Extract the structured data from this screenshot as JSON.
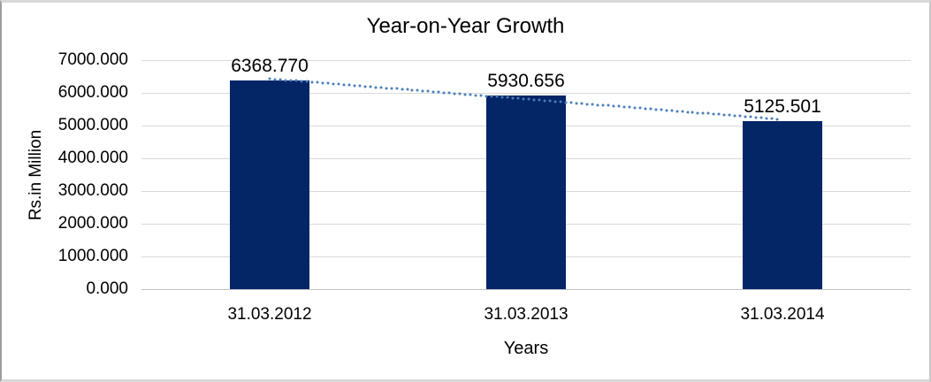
{
  "chart_data": {
    "type": "bar",
    "title": "Year-on-Year Growth",
    "xlabel": "Years",
    "ylabel": "Rs.in Million",
    "categories": [
      "31.03.2012",
      "31.03.2013",
      "31.03.2014"
    ],
    "values": [
      6368.77,
      5930.656,
      5125.501
    ],
    "data_labels": [
      "6368.770",
      "5930.656",
      "5125.501"
    ],
    "y_ticks": [
      "7000.000",
      "6000.000",
      "5000.000",
      "4000.000",
      "3000.000",
      "2000.000",
      "1000.000",
      "0.000"
    ],
    "ylim": [
      0,
      7000
    ],
    "grid": true,
    "legend": "none",
    "colors": {
      "bar": "#042566",
      "trendline": "#4a7ebb",
      "gridline": "#d9d9d9",
      "text": "#000000"
    },
    "trendline": {
      "type": "linear",
      "style": "dotted"
    }
  }
}
